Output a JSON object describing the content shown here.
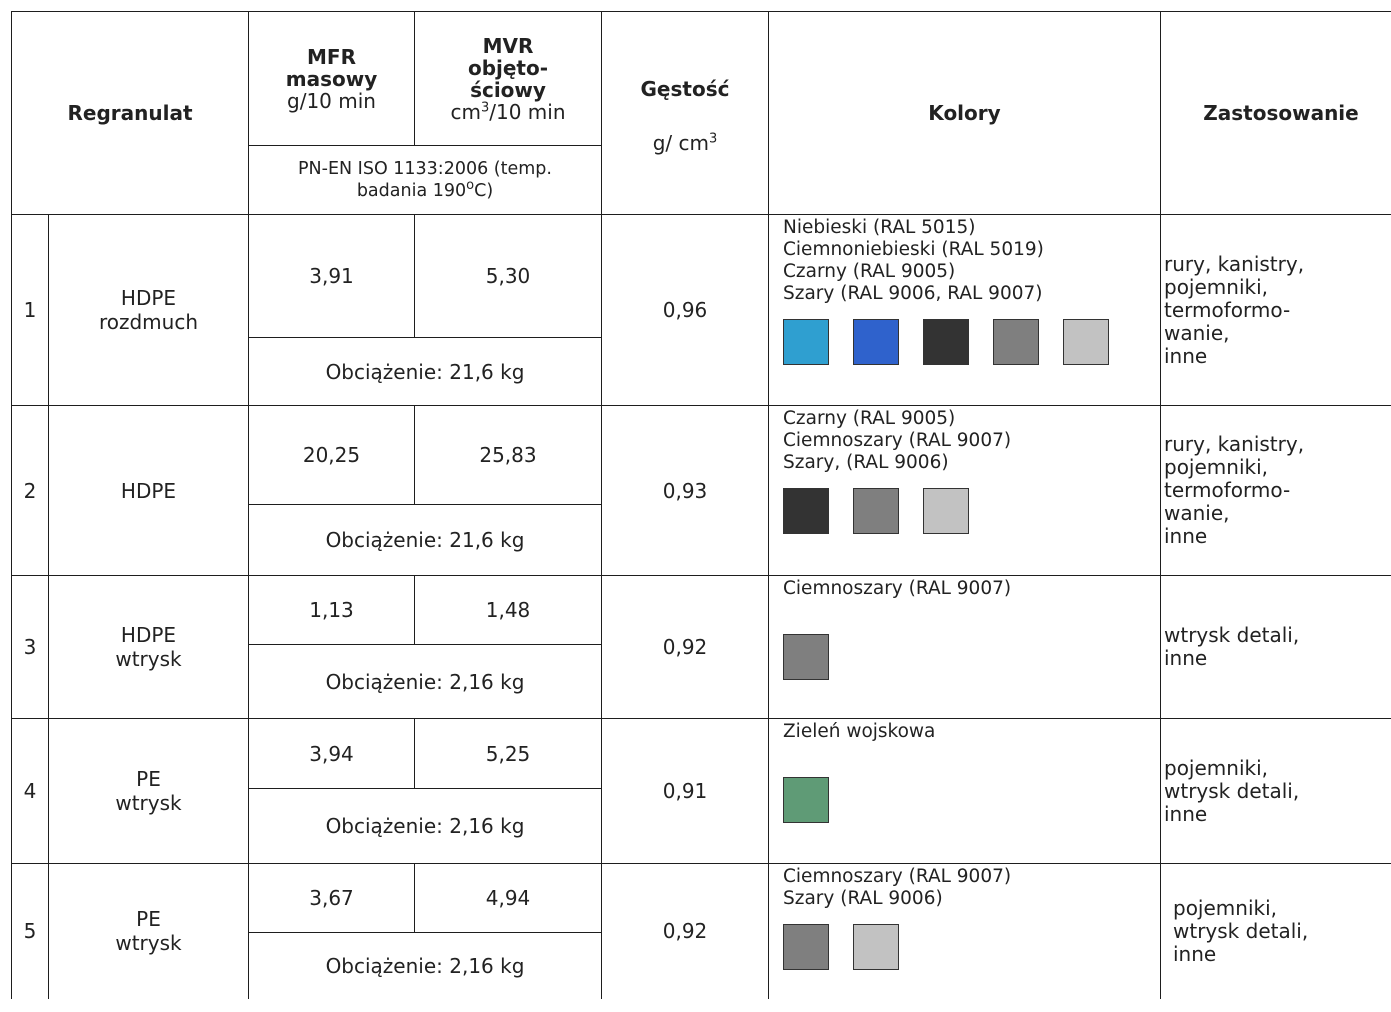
{
  "header": {
    "regranulat": "Regranulat",
    "mfr_title_1": "MFR",
    "mfr_title_2": "masowy",
    "mfr_unit": "g/10 min",
    "mvr_title_1": "MVR",
    "mvr_title_2": "objęto-",
    "mvr_title_3": "ściowy",
    "mvr_unit_prefix": "cm",
    "mvr_unit_sup": "3",
    "mvr_unit_suffix": "/10 min",
    "standard_line_1": "PN-EN ISO 1133:2006 (temp.",
    "standard_line_2": "badania 190",
    "standard_sup": "o",
    "standard_line_2_end": "C)",
    "density_title": "Gęstość",
    "density_unit_prefix": "g/ cm",
    "density_unit_sup": "3",
    "colors": "Kolory",
    "usage": "Zastosowanie"
  },
  "rows": [
    {
      "num": "1",
      "name_1": "HDPE",
      "name_2": "rozdmuch",
      "mfr": "3,91",
      "mvr": "5,30",
      "load": "Obciążenie: 21,6 kg",
      "density": "0,96",
      "colors": [
        "Niebieski (RAL 5015)",
        "Ciemnoniebieski (RAL 5019)",
        "Czarny (RAL 9005)",
        "Szary (RAL 9006, RAL 9007)"
      ],
      "swatches": [
        "#2f9fd0",
        "#2f62cc",
        "#333333",
        "#7f7f7f",
        "#c2c2c2"
      ],
      "usage": [
        "rury,  kanistry,",
        "pojemniki,",
        "termoformo-",
        "wanie,",
        "inne"
      ]
    },
    {
      "num": "2",
      "name_1": "HDPE",
      "name_2": "",
      "mfr": "20,25",
      "mvr": "25,83",
      "load": "Obciążenie: 21,6 kg",
      "density": "0,93",
      "colors": [
        "Czarny (RAL 9005)",
        "Ciemnoszary  (RAL 9007)",
        "Szary,  (RAL 9006)"
      ],
      "swatches": [
        "#333333",
        "#7f7f7f",
        "#c2c2c2"
      ],
      "usage": [
        "rury,  kanistry,",
        "pojemniki,",
        "termoformo-",
        "wanie,",
        "inne"
      ]
    },
    {
      "num": "3",
      "name_1": "HDPE",
      "name_2": "wtrysk",
      "mfr": "1,13",
      "mvr": "1,48",
      "load": "Obciążenie: 2,16 kg",
      "density": "0,92",
      "colors": [
        "Ciemnoszary  (RAL 9007)"
      ],
      "swatches": [
        "#7f7f7f"
      ],
      "usage": [
        "wtrysk detali,",
        "inne"
      ]
    },
    {
      "num": "4",
      "name_1": "PE",
      "name_2": "wtrysk",
      "mfr": "3,94",
      "mvr": "5,25",
      "load": "Obciążenie: 2,16 kg",
      "density": "0,91",
      "colors": [
        "Zieleń wojskowa"
      ],
      "swatches": [
        "#5f9b76"
      ],
      "usage": [
        "pojemniki,",
        "wtrysk detali,",
        "inne"
      ]
    },
    {
      "num": "5",
      "name_1": "PE",
      "name_2": "wtrysk",
      "mfr": "3,67",
      "mvr": "4,94",
      "load": "Obciążenie: 2,16 kg",
      "density": "0,92",
      "colors": [
        "Ciemnoszary (RAL 9007)",
        "Szary (RAL 9006)"
      ],
      "swatches": [
        "#7f7f7f",
        "#c2c2c2"
      ],
      "usage": [
        "pojemniki,",
        "wtrysk detali,",
        "inne"
      ]
    }
  ]
}
